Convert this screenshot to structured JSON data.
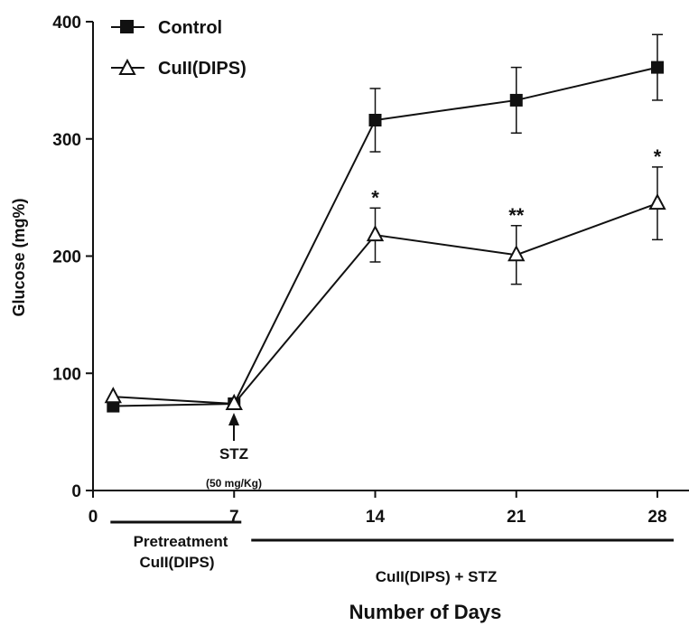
{
  "chart_data": {
    "type": "line",
    "x": [
      1,
      7,
      14,
      21,
      28
    ],
    "xlim": [
      0,
      28
    ],
    "ylim": [
      0,
      400
    ],
    "xticks": [
      0,
      7,
      14,
      21,
      28
    ],
    "yticks": [
      0,
      100,
      200,
      300,
      400
    ],
    "xlabel": "Number of Days",
    "ylabel": "Glucose (mg%)",
    "grid": false,
    "legend_position": "top-left",
    "series": [
      {
        "name": "Control",
        "marker": "filled-square",
        "color": "#111111",
        "values": [
          72,
          74,
          316,
          333,
          361
        ],
        "error": [
          0,
          0,
          27,
          28,
          28
        ]
      },
      {
        "name": "CuII(DIPS)",
        "marker": "open-triangle",
        "color": "#111111",
        "values": [
          80,
          74,
          218,
          201,
          245
        ],
        "error": [
          0,
          0,
          23,
          25,
          31
        ],
        "significance": [
          "",
          "",
          "*",
          "**",
          "*"
        ]
      }
    ],
    "annotations": {
      "stz_label": "STZ",
      "stz_dose": "(50 mg/Kg)",
      "stz_day": 7,
      "phase_pre_line1": "Pretreatment",
      "phase_pre_line2": "CuII(DIPS)",
      "phase_pre_range": [
        1,
        7
      ],
      "phase_post_label": "CuII(DIPS) + STZ",
      "phase_post_range": [
        7,
        28
      ]
    }
  }
}
